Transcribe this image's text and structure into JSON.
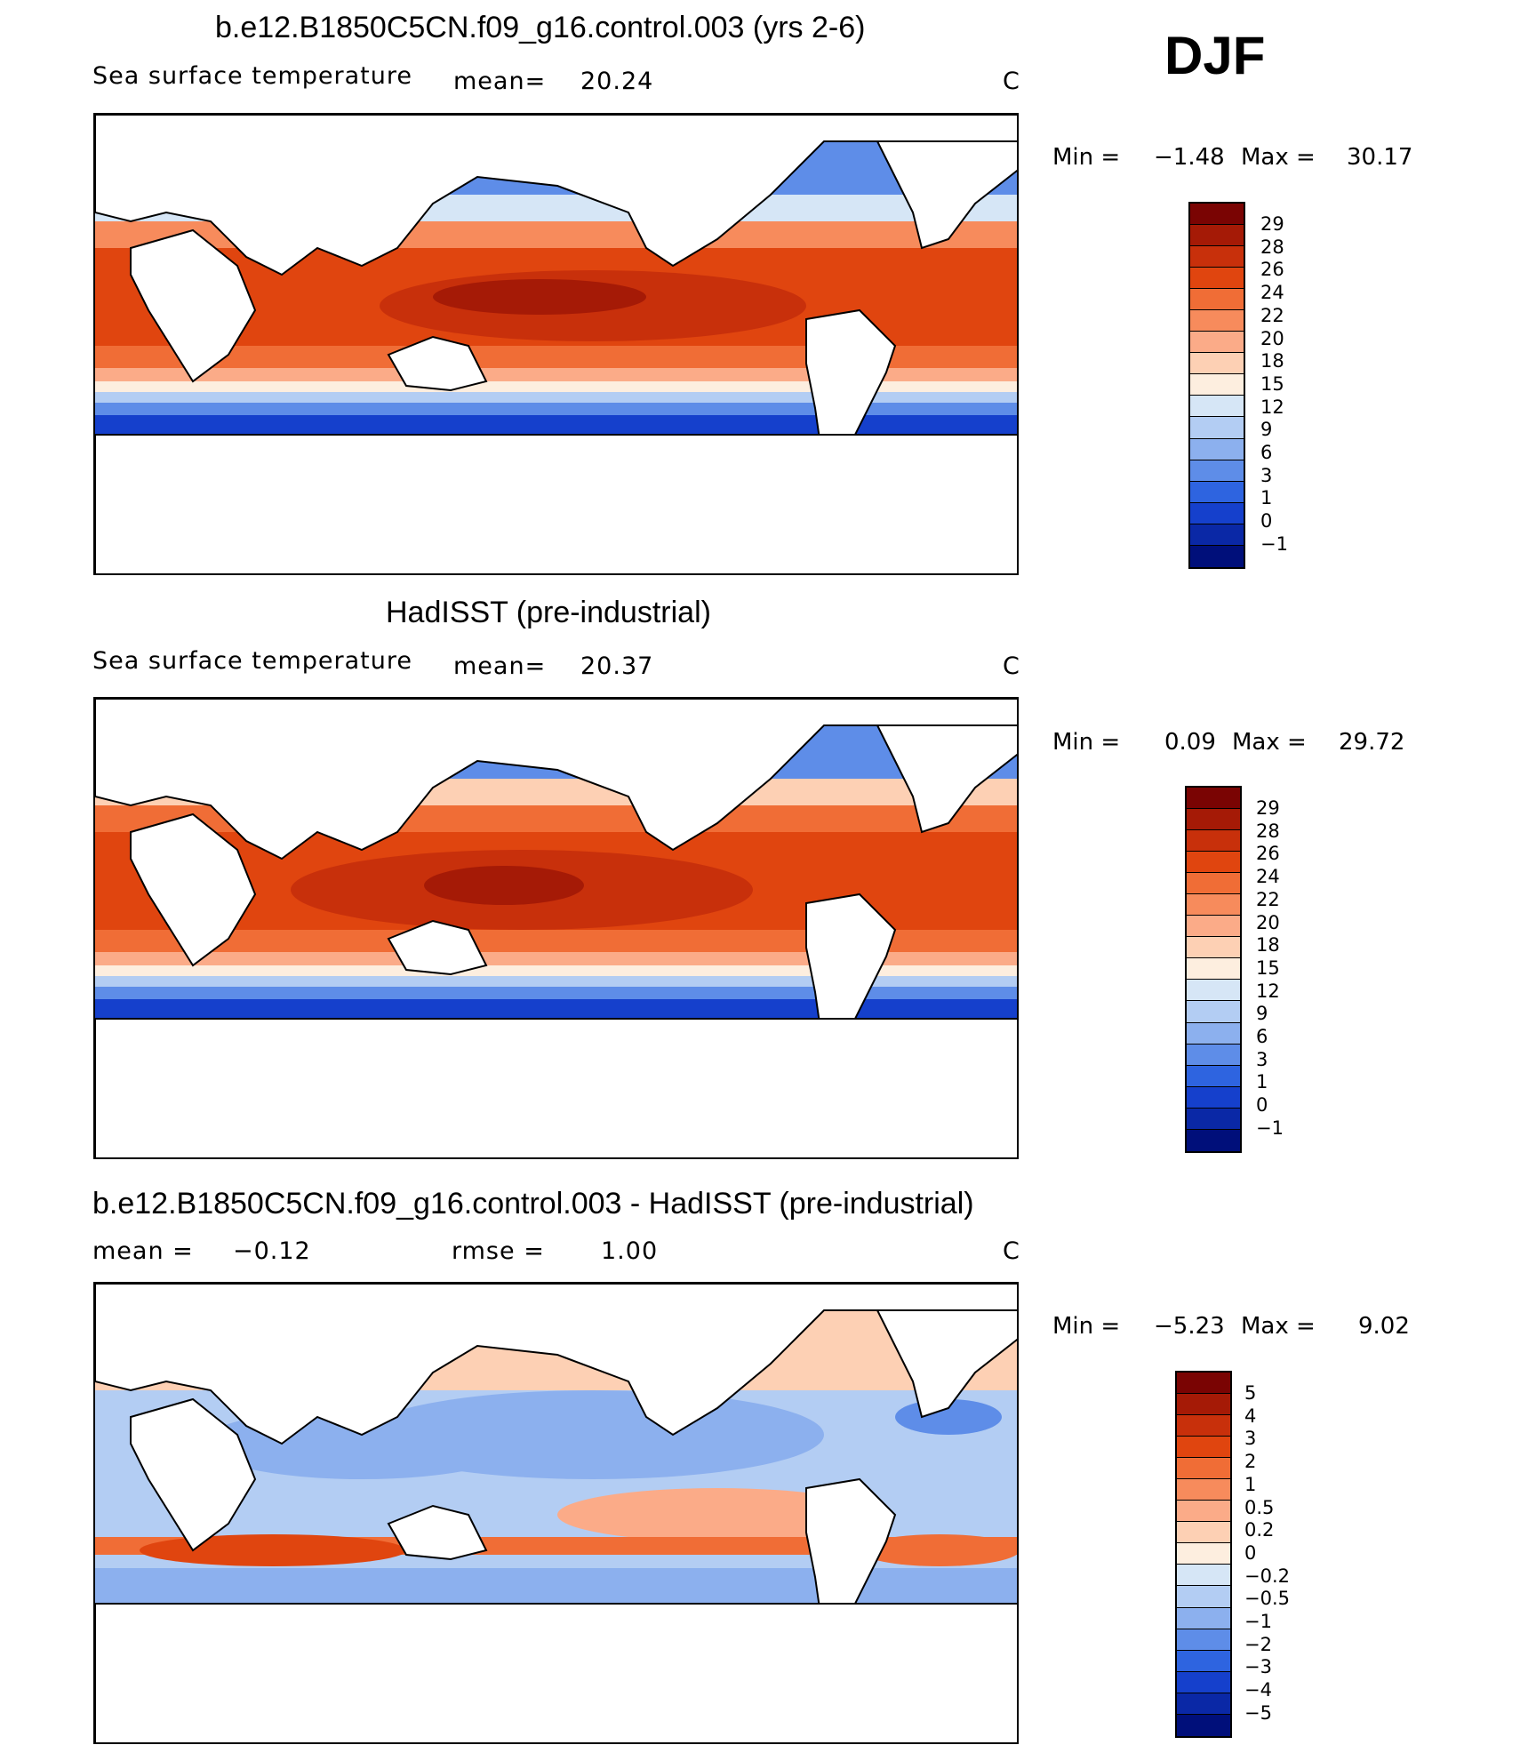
{
  "season": "DJF",
  "panels": [
    {
      "title": "b.e12.B1850C5CN.f09_g16.control.003 (yrs 2-6)",
      "subtitle_left": "Sea surface temperature",
      "stat_label": "mean=",
      "stat_value": "20.24",
      "units": "C",
      "min_label": "Min =",
      "min_value": "−1.48",
      "max_label": "Max =",
      "max_value": "30.17"
    },
    {
      "title": "HadISST (pre-industrial)",
      "subtitle_left": "Sea surface temperature",
      "stat_label": "mean=",
      "stat_value": "20.37",
      "units": "C",
      "min_label": "Min =",
      "min_value": "0.09",
      "max_label": "Max =",
      "max_value": "29.72"
    },
    {
      "title": "b.e12.B1850C5CN.f09_g16.control.003 - HadISST (pre-industrial)",
      "mean_label": "mean =",
      "mean_value": "−0.12",
      "rmse_label": "rmse =",
      "rmse_value": "1.00",
      "units": "C",
      "min_label": "Min =",
      "min_value": "−5.23",
      "max_label": "Max =",
      "max_value": "9.02"
    }
  ],
  "colorbars": {
    "sst": {
      "labels": [
        "29",
        "28",
        "26",
        "24",
        "22",
        "20",
        "18",
        "15",
        "12",
        "9",
        "6",
        "3",
        "1",
        "0",
        "−1"
      ],
      "colors": [
        "#7a0403",
        "#a51a06",
        "#c8300b",
        "#e0450f",
        "#f06d36",
        "#f78b5c",
        "#fbab88",
        "#fdd0b4",
        "#fdeedf",
        "#d6e6f6",
        "#b3cdf3",
        "#8cb0ee",
        "#5e8de8",
        "#2e64e0",
        "#1540cc",
        "#0a28a6",
        "#000f7a"
      ]
    },
    "diff": {
      "labels": [
        "5",
        "4",
        "3",
        "2",
        "1",
        "0.5",
        "0.2",
        "0",
        "−0.2",
        "−0.5",
        "−1",
        "−2",
        "−3",
        "−4",
        "−5"
      ],
      "colors": [
        "#7a0403",
        "#a51a06",
        "#c8300b",
        "#e0450f",
        "#f06d36",
        "#f78b5c",
        "#fbab88",
        "#fdd0b4",
        "#fdeedf",
        "#d6e6f6",
        "#b3cdf3",
        "#8cb0ee",
        "#5e8de8",
        "#2e64e0",
        "#1540cc",
        "#0a28a6",
        "#000f7a"
      ]
    }
  }
}
